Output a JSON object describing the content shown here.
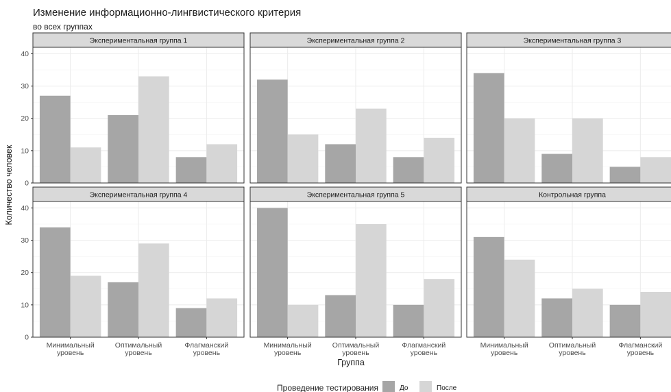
{
  "title": "Изменение информационно-лингвистического критерия",
  "subtitle": "во всех группах",
  "colors": {
    "До": "#a6a6a6",
    "После": "#d6d6d6",
    "strip": "#d9d9d9",
    "grid": "#ebebeb",
    "border": "#333333"
  },
  "chart_data": {
    "type": "bar",
    "xlabel": "Группа",
    "ylabel": "Количество человек",
    "ylim": [
      0,
      42
    ],
    "yticks": [
      0,
      10,
      20,
      30,
      40
    ],
    "categories": [
      [
        "Минимальный",
        "уровень"
      ],
      [
        "Оптимальный",
        "уровень"
      ],
      [
        "Флагманский",
        "уровень"
      ]
    ],
    "legend": {
      "title": "Проведение тестирования",
      "entries": [
        "До",
        "После"
      ],
      "position": "bottom"
    },
    "grid": true,
    "panels": [
      {
        "name": "Экспериментальная группа 1",
        "series": [
          {
            "name": "До",
            "values": [
              27,
              21,
              8
            ]
          },
          {
            "name": "После",
            "values": [
              11,
              33,
              12
            ]
          }
        ]
      },
      {
        "name": "Экспериментальная группа 2",
        "series": [
          {
            "name": "До",
            "values": [
              32,
              12,
              8
            ]
          },
          {
            "name": "После",
            "values": [
              15,
              23,
              14
            ]
          }
        ]
      },
      {
        "name": "Экспериментальная группа 3",
        "series": [
          {
            "name": "До",
            "values": [
              34,
              9,
              5
            ]
          },
          {
            "name": "После",
            "values": [
              20,
              20,
              8
            ]
          }
        ]
      },
      {
        "name": "Экспериментальная группа 4",
        "series": [
          {
            "name": "До",
            "values": [
              34,
              17,
              9
            ]
          },
          {
            "name": "После",
            "values": [
              19,
              29,
              12
            ]
          }
        ]
      },
      {
        "name": "Экспериментальная группа 5",
        "series": [
          {
            "name": "До",
            "values": [
              40,
              13,
              10
            ]
          },
          {
            "name": "После",
            "values": [
              10,
              35,
              18
            ]
          }
        ]
      },
      {
        "name": "Контрольная группа",
        "series": [
          {
            "name": "До",
            "values": [
              31,
              12,
              10
            ]
          },
          {
            "name": "После",
            "values": [
              24,
              15,
              14
            ]
          }
        ]
      }
    ]
  }
}
